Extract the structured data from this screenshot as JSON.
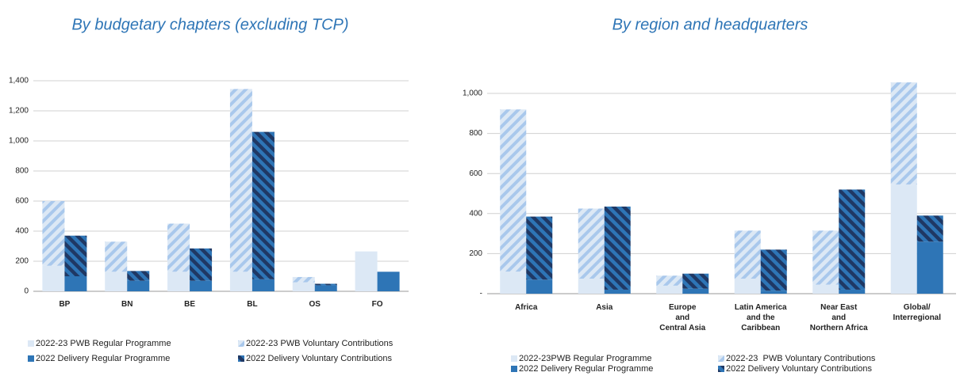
{
  "chart_data": [
    {
      "type": "bar",
      "title": "By budgetary chapters (excluding TCP)",
      "categories": [
        "BP",
        "BN",
        "BE",
        "BL",
        "OS",
        "FO"
      ],
      "series": [
        {
          "name": "2022-23 PWB Regular Programme",
          "color": "#dce8f5",
          "values": [
            170,
            130,
            130,
            130,
            60,
            265
          ]
        },
        {
          "name": "2022-23 PWB Voluntary Contributions",
          "color": "#dce8f5",
          "hatch_color": "#a9c8ec",
          "values": [
            430,
            200,
            320,
            1215,
            35,
            0
          ]
        },
        {
          "name": "2022 Delivery Regular Programme",
          "color": "#2e75b6",
          "values": [
            100,
            70,
            70,
            80,
            40,
            130
          ]
        },
        {
          "name": "2022 Delivery Voluntary Contributions",
          "color": "#2e75b6",
          "hatch_color": "#1f3864",
          "values": [
            270,
            65,
            215,
            980,
            10,
            0
          ]
        }
      ],
      "ylim": [
        0,
        1400
      ],
      "yticks": [
        0,
        200,
        400,
        600,
        800,
        {
          "value": 1000,
          "label": "1,000"
        },
        {
          "value": 1200,
          "label": "1,200"
        },
        {
          "value": 1400,
          "label": "1,400"
        }
      ],
      "grid": true
    },
    {
      "type": "bar",
      "title": "By region and headquarters",
      "categories": [
        "Africa",
        "Asia",
        "Europe\nand\nCentral Asia",
        "Latin America\nand the\nCaribbean",
        "Near East\nand\nNorthern Africa",
        "Global/\nInterregional"
      ],
      "series": [
        {
          "name": "2022-23PWB Regular Programme",
          "color": "#dce8f5",
          "values": [
            110,
            75,
            40,
            75,
            45,
            545
          ]
        },
        {
          "name": "2022-23  PWB Voluntary Contributions",
          "color": "#dce8f5",
          "hatch_color": "#a9c8ec",
          "values": [
            810,
            350,
            50,
            240,
            270,
            510
          ]
        },
        {
          "name": "2022 Delivery Regular Programme",
          "color": "#2e75b6",
          "values": [
            70,
            20,
            25,
            15,
            20,
            260
          ]
        },
        {
          "name": "2022 Delivery Voluntary Contributions",
          "color": "#2e75b6",
          "hatch_color": "#1f3864",
          "values": [
            315,
            415,
            75,
            205,
            500,
            130
          ]
        }
      ],
      "ylim": [
        0,
        1000
      ],
      "yticks": [
        {
          "value": 0,
          "label": "-"
        },
        200,
        400,
        600,
        800,
        {
          "value": 1000,
          "label": "1,000"
        }
      ],
      "grid": true
    }
  ]
}
